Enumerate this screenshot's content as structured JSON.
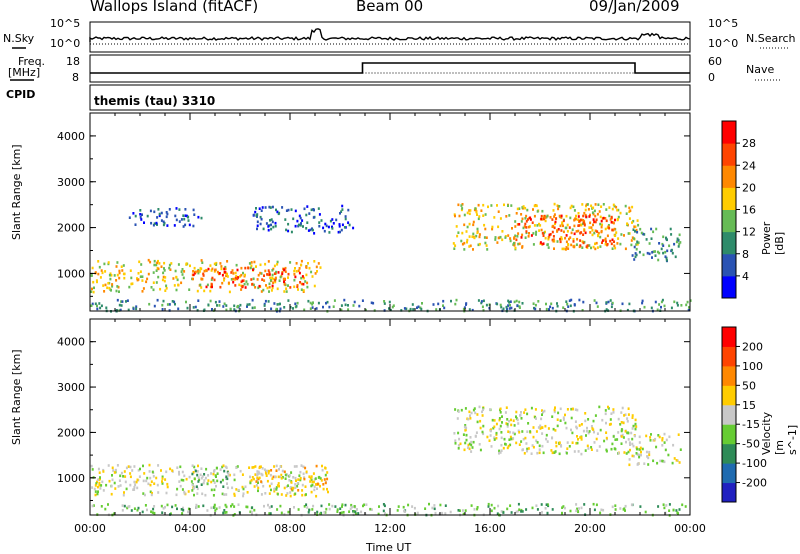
{
  "header": {
    "station": "Wallops Island (fitACF)",
    "beam": "Beam 00",
    "date": "09/Jan/2009"
  },
  "top_panels": {
    "nsky_label": "N.Sky",
    "nsearch_label": "N.Search",
    "noise_ticks": [
      "10^5",
      "10^0"
    ],
    "freq_label": "Freq.",
    "freq_unit": "[MHz]",
    "freq_ticks": [
      "18",
      "8"
    ],
    "nave_label": "Nave",
    "nave_ticks": [
      "60",
      "0"
    ],
    "cpid_label": "CPID",
    "cpid_text": "themis (tau) 3310"
  },
  "chart_data": [
    {
      "type": "heatmap",
      "name": "power",
      "ylabel": "Slant Range [km]",
      "xlabel": "",
      "ylim": [
        180,
        4500
      ],
      "xlim": [
        0,
        24
      ],
      "yticks": [
        "1000",
        "2000",
        "3000",
        "4000"
      ],
      "colorbar_label": "Power [dB]",
      "colorbar_ticks": [
        "4",
        "8",
        "12",
        "16",
        "20",
        "24",
        "28"
      ],
      "colors": [
        "#0000ff",
        "#2a53b3",
        "#2e8b6a",
        "#66bb55",
        "#ffcc00",
        "#ff8800",
        "#ff4400",
        "#ff0000"
      ],
      "regions": [
        {
          "t0": 0.0,
          "t1": 9.2,
          "r0": 620,
          "r1": 1320,
          "level": 4
        },
        {
          "t0": 4.0,
          "t1": 8.5,
          "r0": 720,
          "r1": 1150,
          "level": 6
        },
        {
          "t0": 14.5,
          "t1": 21.9,
          "r0": 1550,
          "r1": 2550,
          "level": 4
        },
        {
          "t0": 17.0,
          "t1": 21.0,
          "r0": 1600,
          "r1": 2300,
          "level": 6
        },
        {
          "t0": 1.5,
          "t1": 4.5,
          "r0": 2050,
          "r1": 2450,
          "level": 1
        },
        {
          "t0": 6.5,
          "t1": 10.5,
          "r0": 1900,
          "r1": 2500,
          "level": 1
        },
        {
          "t0": 21.5,
          "t1": 23.6,
          "r0": 1300,
          "r1": 2000,
          "level": 2
        },
        {
          "t0": 0.0,
          "t1": 24.0,
          "r0": 200,
          "r1": 450,
          "level": 2
        }
      ]
    },
    {
      "type": "heatmap",
      "name": "velocity",
      "ylabel": "Slant Range [km]",
      "xlabel": "Time UT",
      "ylim": [
        180,
        4500
      ],
      "xlim": [
        0,
        24
      ],
      "xticks": [
        "00:00",
        "04:00",
        "08:00",
        "12:00",
        "16:00",
        "20:00",
        "00:00"
      ],
      "yticks": [
        "1000",
        "2000",
        "3000",
        "4000"
      ],
      "colorbar_label": "Velocity [m s^-1]",
      "colorbar_ticks": [
        "200",
        "100",
        "50",
        "15",
        "-15",
        "-50",
        "-100",
        "-200"
      ],
      "colors": [
        "#2020c0",
        "#1f6bb0",
        "#2e8b57",
        "#66cc33",
        "#c8c8c8",
        "#ffcc00",
        "#ff8800",
        "#ff4400",
        "#ff0000"
      ],
      "regions": [
        {
          "t0": 0.0,
          "t1": 9.5,
          "r0": 620,
          "r1": 1320,
          "level": 4
        },
        {
          "t0": 4.0,
          "t1": 5.5,
          "r0": 750,
          "r1": 1250,
          "level": 3
        },
        {
          "t0": 6.5,
          "t1": 9.5,
          "r0": 750,
          "r1": 1300,
          "level": 5
        },
        {
          "t0": 14.5,
          "t1": 21.9,
          "r0": 1550,
          "r1": 2600,
          "level": 4
        },
        {
          "t0": 21.5,
          "t1": 23.6,
          "r0": 1300,
          "r1": 2000,
          "level": 4
        },
        {
          "t0": 0.0,
          "t1": 24.0,
          "r0": 200,
          "r1": 450,
          "level": 3
        }
      ]
    }
  ]
}
